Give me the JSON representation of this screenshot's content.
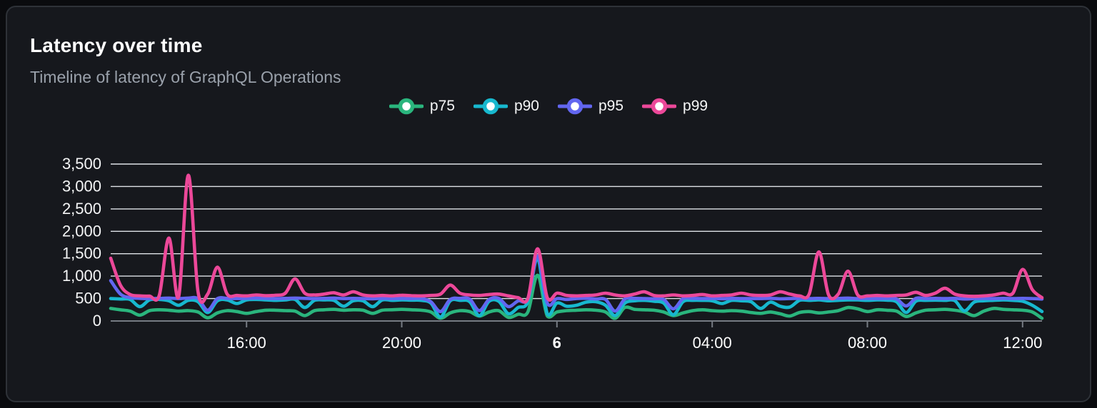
{
  "header": {
    "title": "Latency over time",
    "subtitle": "Timeline of latency of GraphQL Operations"
  },
  "colors": {
    "page_background": "#0a0b0e",
    "card_background": "#16181d",
    "card_border": "#2e3238",
    "gridline": "#dfe3e8",
    "axis_line": "#767b83",
    "text_primary": "#ffffff",
    "text_secondary": "#9aa1ab"
  },
  "chart_data": {
    "type": "line",
    "title": "Latency over time",
    "subtitle": "Timeline of latency of GraphQL Operations",
    "grid": true,
    "legend_position": "top-center",
    "point_interval_minutes": 15,
    "x_axis": {
      "description": "24h window, one point every 15 minutes, afternoon of day 5 through midday of day 6",
      "ticks": [
        {
          "index": 14,
          "label": "16:00",
          "bold": false
        },
        {
          "index": 30,
          "label": "20:00",
          "bold": false
        },
        {
          "index": 46,
          "label": "6",
          "bold": true
        },
        {
          "index": 62,
          "label": "04:00",
          "bold": false
        },
        {
          "index": 78,
          "label": "08:00",
          "bold": false
        },
        {
          "index": 94,
          "label": "12:00",
          "bold": false
        }
      ]
    },
    "y_axis": {
      "min": 0,
      "max": 3500,
      "tick_step": 500,
      "tick_labels": [
        "0",
        "500",
        "1,000",
        "1,500",
        "2,000",
        "2,500",
        "3,000",
        "3,500"
      ]
    },
    "series": [
      {
        "name": "p75",
        "color": "#2ab57d",
        "values": [
          280,
          250,
          220,
          130,
          230,
          250,
          240,
          220,
          230,
          200,
          70,
          180,
          230,
          210,
          170,
          210,
          240,
          240,
          230,
          220,
          120,
          230,
          250,
          260,
          240,
          250,
          240,
          170,
          240,
          250,
          260,
          250,
          240,
          200,
          60,
          180,
          230,
          210,
          110,
          200,
          230,
          80,
          150,
          200,
          1020,
          110,
          200,
          230,
          240,
          250,
          240,
          200,
          60,
          300,
          260,
          250,
          240,
          200,
          120,
          180,
          230,
          250,
          230,
          220,
          230,
          220,
          190,
          170,
          200,
          160,
          110,
          190,
          210,
          180,
          200,
          230,
          300,
          270,
          210,
          250,
          240,
          220,
          100,
          180,
          240,
          250,
          260,
          240,
          200,
          120,
          220,
          280,
          260,
          250,
          240,
          200,
          60
        ]
      },
      {
        "name": "p90",
        "color": "#17b8ce",
        "values": [
          500,
          490,
          480,
          320,
          470,
          480,
          450,
          350,
          460,
          430,
          190,
          450,
          470,
          390,
          470,
          480,
          470,
          460,
          470,
          480,
          300,
          460,
          470,
          460,
          330,
          450,
          450,
          320,
          470,
          460,
          470,
          465,
          460,
          400,
          90,
          450,
          460,
          430,
          120,
          440,
          440,
          160,
          300,
          430,
          1400,
          160,
          400,
          330,
          350,
          420,
          430,
          350,
          120,
          400,
          450,
          460,
          440,
          400,
          140,
          430,
          460,
          460,
          450,
          390,
          460,
          450,
          430,
          280,
          420,
          330,
          310,
          460,
          460,
          470,
          450,
          460,
          470,
          470,
          460,
          470,
          465,
          430,
          190,
          440,
          460,
          465,
          460,
          455,
          225,
          420,
          450,
          460,
          470,
          460,
          440,
          350,
          210
        ]
      },
      {
        "name": "p95",
        "color": "#6266f0",
        "values": [
          900,
          600,
          520,
          505,
          500,
          505,
          510,
          500,
          510,
          500,
          240,
          500,
          505,
          500,
          505,
          510,
          505,
          500,
          505,
          510,
          505,
          500,
          505,
          510,
          500,
          505,
          500,
          495,
          505,
          500,
          505,
          500,
          505,
          430,
          210,
          480,
          505,
          490,
          230,
          480,
          505,
          320,
          450,
          500,
          1450,
          400,
          500,
          480,
          500,
          505,
          490,
          480,
          220,
          490,
          505,
          500,
          495,
          480,
          270,
          500,
          505,
          500,
          505,
          495,
          505,
          500,
          500,
          500,
          505,
          495,
          500,
          505,
          500,
          505,
          500,
          505,
          510,
          500,
          505,
          500,
          505,
          490,
          335,
          505,
          500,
          505,
          500,
          505,
          490,
          500,
          505,
          500,
          505,
          500,
          505,
          500,
          490
        ]
      },
      {
        "name": "p99",
        "color": "#ec4899",
        "values": [
          1400,
          800,
          590,
          560,
          555,
          565,
          1850,
          540,
          3250,
          650,
          600,
          1200,
          600,
          570,
          560,
          580,
          565,
          575,
          620,
          940,
          620,
          580,
          600,
          630,
          580,
          650,
          580,
          560,
          570,
          560,
          575,
          565,
          560,
          570,
          600,
          800,
          620,
          580,
          570,
          590,
          600,
          560,
          520,
          500,
          1610,
          520,
          620,
          570,
          560,
          570,
          580,
          620,
          580,
          560,
          600,
          650,
          570,
          560,
          580,
          560,
          570,
          590,
          560,
          570,
          580,
          620,
          580,
          570,
          580,
          650,
          600,
          560,
          600,
          1540,
          580,
          600,
          1110,
          580,
          560,
          570,
          560,
          570,
          580,
          640,
          570,
          620,
          730,
          600,
          560,
          550,
          560,
          580,
          620,
          620,
          1150,
          700,
          520
        ]
      }
    ]
  }
}
